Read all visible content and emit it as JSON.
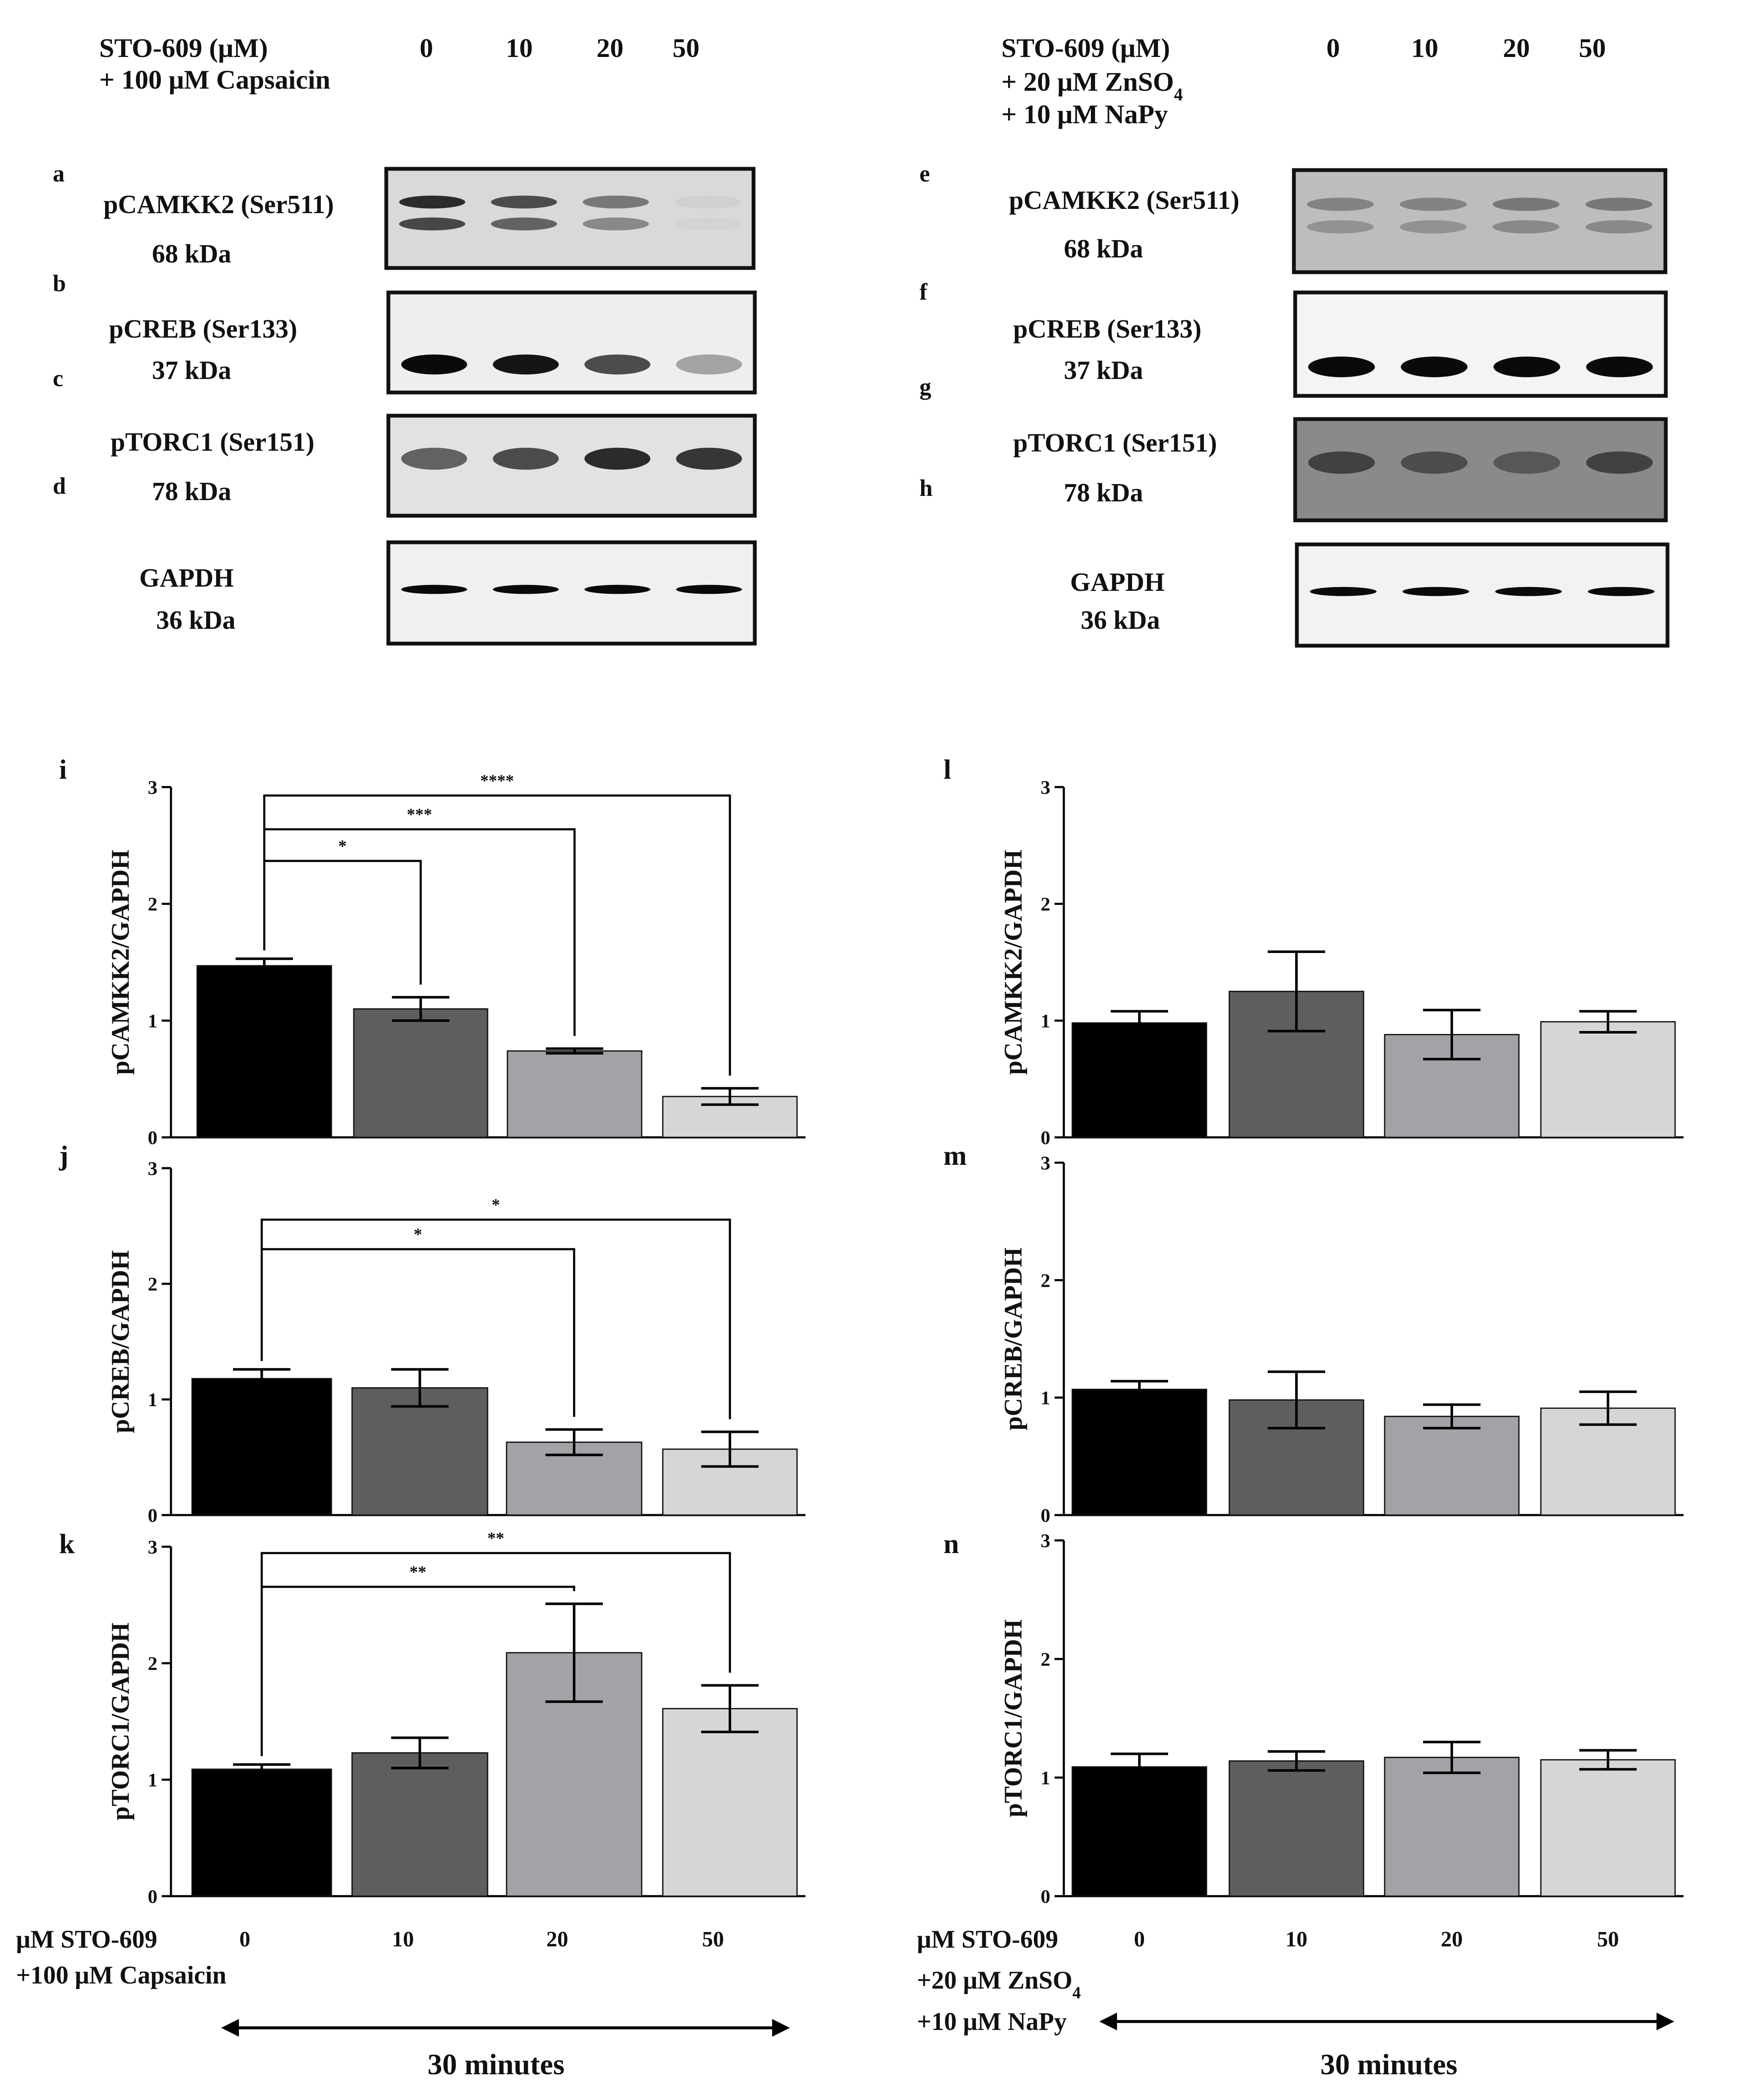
{
  "left_header": {
    "lines": [
      "STO-609 (μM)",
      "+ 100 μM Capsaicin"
    ],
    "lane_labels": [
      "0",
      "10",
      "20",
      "50"
    ]
  },
  "right_header": {
    "lines": [
      "STO-609 (μM)",
      "+ 20 μM ZnSO4",
      "+ 10 μM NaPy"
    ],
    "lane_labels": [
      "0",
      "10",
      "20",
      "50"
    ]
  },
  "blot_letters_left": [
    "a",
    "b",
    "c",
    "d"
  ],
  "blot_letters_right": [
    "e",
    "f",
    "g",
    "h"
  ],
  "blots_left": [
    {
      "name": "pCAMKK2 (Ser511)",
      "mw": "68 kDa",
      "lane_intensity": [
        0.85,
        0.7,
        0.5,
        0.1
      ]
    },
    {
      "name": "pCREB (Ser133)",
      "mw": "37 kDa",
      "lane_intensity": [
        1.0,
        0.95,
        0.7,
        0.3
      ]
    },
    {
      "name": "pTORC1 (Ser151)",
      "mw": "78 kDa",
      "lane_intensity": [
        0.6,
        0.7,
        0.85,
        0.8
      ]
    },
    {
      "name": "GAPDH",
      "mw": "36 kDa",
      "lane_intensity": [
        1.0,
        1.0,
        1.0,
        1.0
      ]
    }
  ],
  "blots_right": [
    {
      "name": "pCAMKK2 (Ser511)",
      "mw": "68 kDa",
      "lane_intensity": [
        0.45,
        0.45,
        0.5,
        0.5
      ]
    },
    {
      "name": "pCREB (Ser133)",
      "mw": "37 kDa",
      "lane_intensity": [
        1.0,
        1.0,
        1.0,
        1.0
      ]
    },
    {
      "name": "pTORC1 (Ser151)",
      "mw": "78 kDa",
      "lane_intensity": [
        0.75,
        0.7,
        0.65,
        0.75
      ]
    },
    {
      "name": "GAPDH",
      "mw": "36 kDa",
      "lane_intensity": [
        1.0,
        1.0,
        1.0,
        1.0
      ]
    }
  ],
  "bar_colors": [
    "#000000",
    "#5e5e5e",
    "#a3a3a7",
    "#d6d6d6"
  ],
  "chart_data": [
    {
      "type": "bar",
      "panel": "i",
      "ylabel": "pCAMKK2/GAPDH",
      "ylim": [
        0,
        3
      ],
      "yticks": [
        0,
        1,
        2,
        3
      ],
      "categories": [
        "0",
        "10",
        "20",
        "50"
      ],
      "values": [
        1.47,
        1.1,
        0.74,
        0.35
      ],
      "errors": [
        0.06,
        0.1,
        0.02,
        0.07
      ],
      "significance": [
        {
          "from": 0,
          "to": 1,
          "label": "*"
        },
        {
          "from": 0,
          "to": 2,
          "label": "***"
        },
        {
          "from": 0,
          "to": 3,
          "label": "****"
        }
      ]
    },
    {
      "type": "bar",
      "panel": "j",
      "ylabel": "pCREB/GAPDH",
      "ylim": [
        0,
        3
      ],
      "yticks": [
        0,
        1,
        2,
        3
      ],
      "categories": [
        "0",
        "10",
        "20",
        "50"
      ],
      "values": [
        1.18,
        1.1,
        0.63,
        0.57
      ],
      "errors": [
        0.08,
        0.16,
        0.11,
        0.15
      ],
      "significance": [
        {
          "from": 0,
          "to": 2,
          "label": "*"
        },
        {
          "from": 0,
          "to": 3,
          "label": "*"
        }
      ]
    },
    {
      "type": "bar",
      "panel": "k",
      "ylabel": "pTORC1/GAPDH",
      "ylim": [
        0,
        3
      ],
      "yticks": [
        0,
        1,
        2,
        3
      ],
      "categories": [
        "0",
        "10",
        "20",
        "50"
      ],
      "values": [
        1.09,
        1.23,
        2.09,
        1.61
      ],
      "errors": [
        0.04,
        0.13,
        0.42,
        0.2
      ],
      "significance": [
        {
          "from": 0,
          "to": 2,
          "label": "**"
        },
        {
          "from": 0,
          "to": 3,
          "label": "**"
        }
      ]
    },
    {
      "type": "bar",
      "panel": "l",
      "ylabel": "pCAMKK2/GAPDH",
      "ylim": [
        0,
        3
      ],
      "yticks": [
        0,
        1,
        2,
        3
      ],
      "categories": [
        "0",
        "10",
        "20",
        "50"
      ],
      "values": [
        0.98,
        1.25,
        0.88,
        0.99
      ],
      "errors": [
        0.1,
        0.34,
        0.21,
        0.09
      ],
      "significance": []
    },
    {
      "type": "bar",
      "panel": "m",
      "ylabel": "pCREB/GAPDH",
      "ylim": [
        0,
        3
      ],
      "yticks": [
        0,
        1,
        2,
        3
      ],
      "categories": [
        "0",
        "10",
        "20",
        "50"
      ],
      "values": [
        1.07,
        0.98,
        0.84,
        0.91
      ],
      "errors": [
        0.07,
        0.24,
        0.1,
        0.14
      ],
      "significance": []
    },
    {
      "type": "bar",
      "panel": "n",
      "ylabel": "pTORC1/GAPDH",
      "ylim": [
        0,
        3
      ],
      "yticks": [
        0,
        1,
        2,
        3
      ],
      "categories": [
        "0",
        "10",
        "20",
        "50"
      ],
      "values": [
        1.09,
        1.14,
        1.17,
        1.15
      ],
      "errors": [
        0.11,
        0.08,
        0.13,
        0.08
      ],
      "significance": []
    }
  ],
  "left_footer": {
    "lines": [
      "μM STO-609",
      "+100 μM Capsaicin"
    ],
    "duration": "30 minutes"
  },
  "right_footer": {
    "lines": [
      "μM STO-609",
      "+20 μM ZnSO4",
      "+10 μM NaPy"
    ],
    "duration": "30 minutes"
  }
}
